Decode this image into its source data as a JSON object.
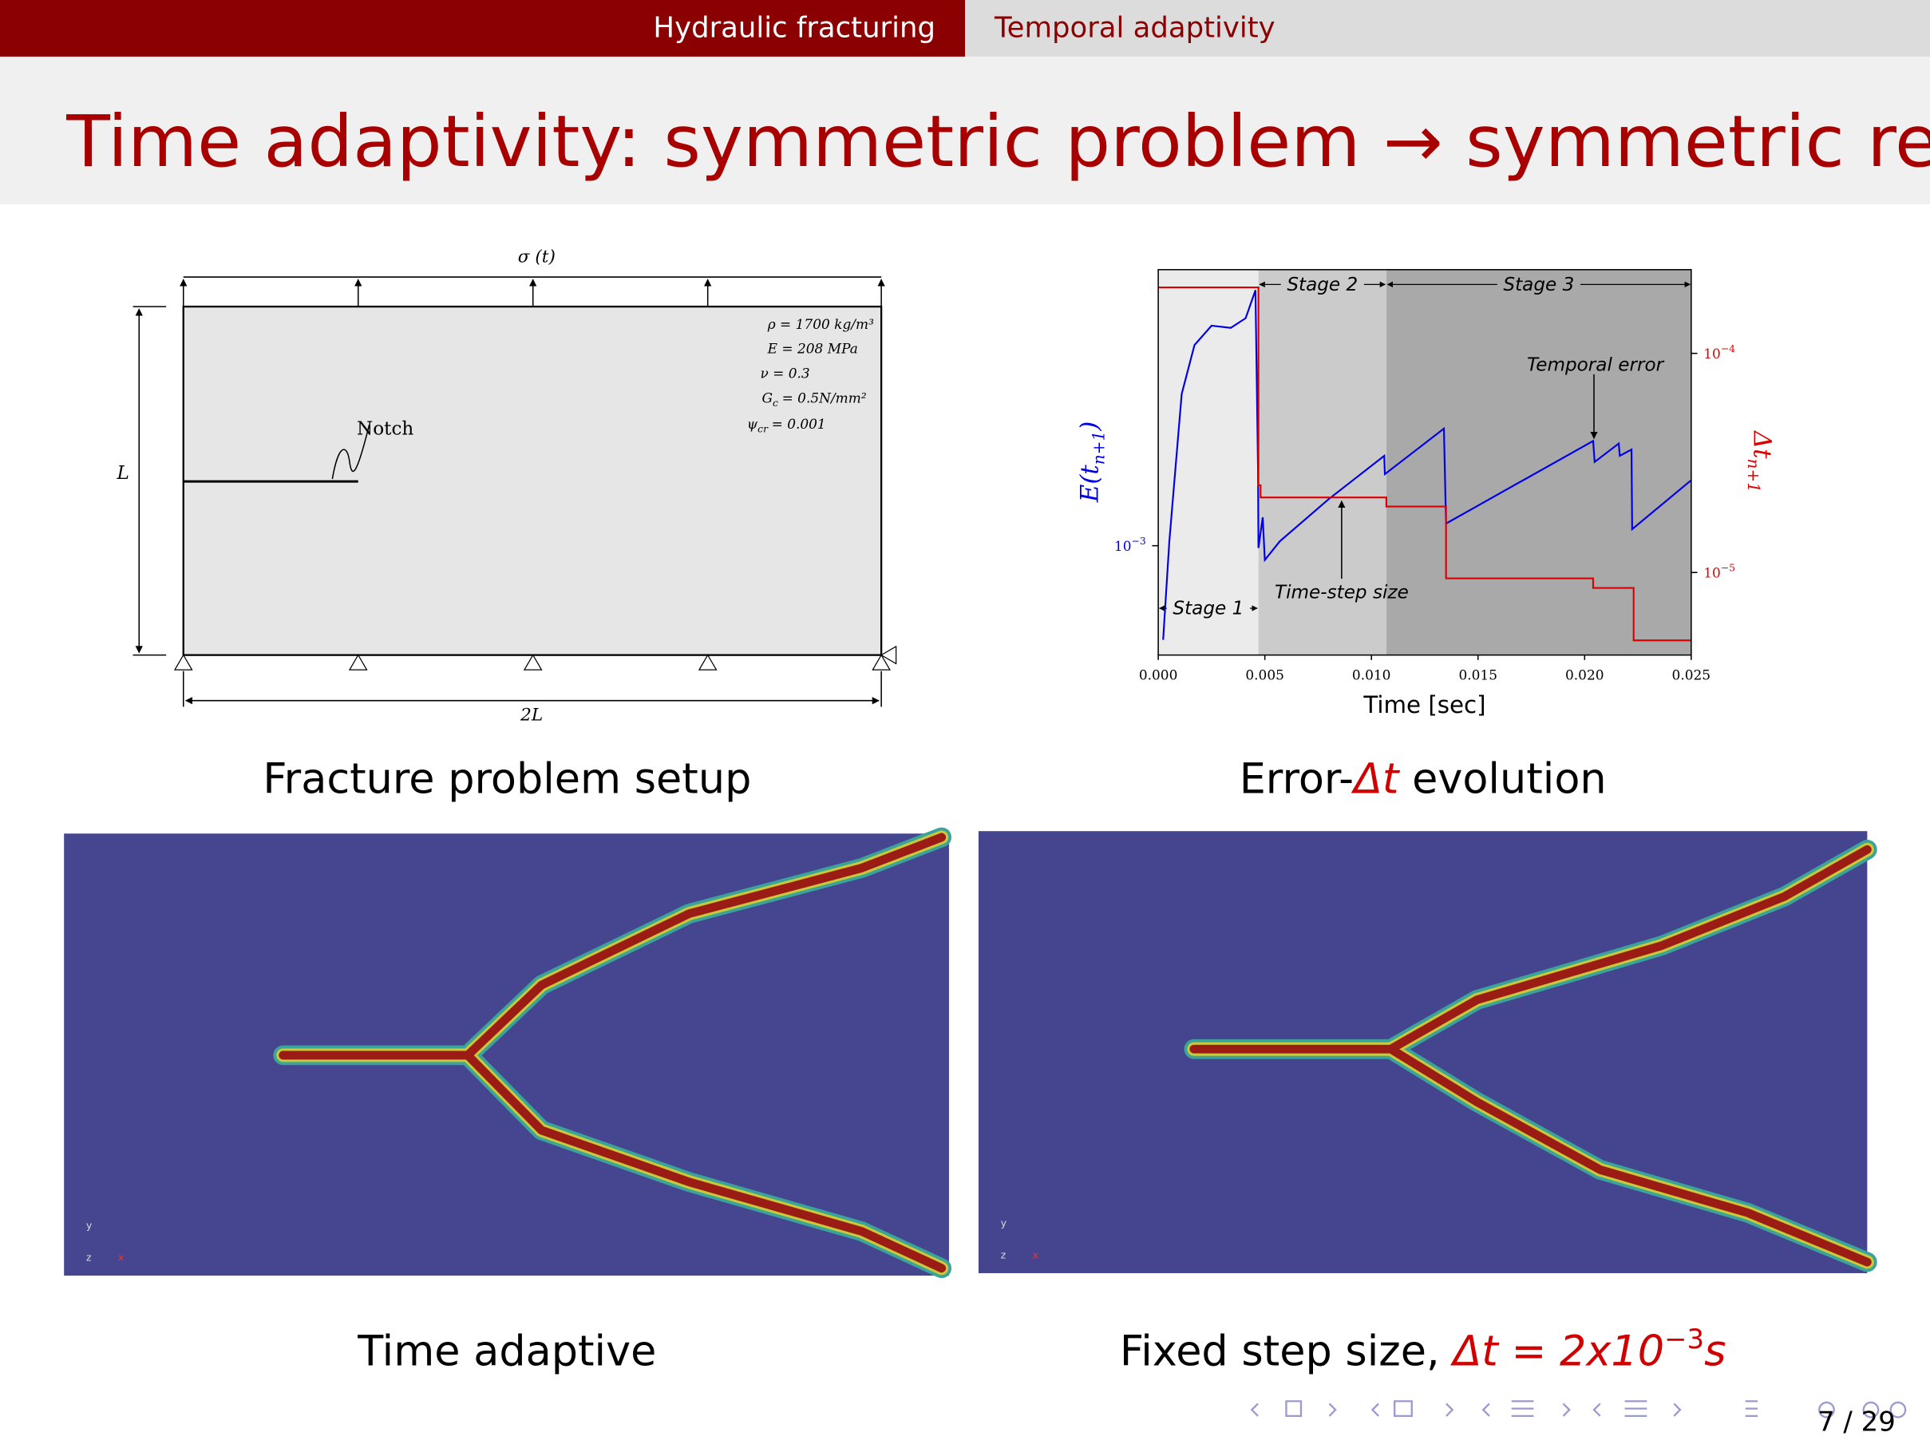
{
  "nav": {
    "sections": [
      "Hydraulic fracturing",
      "Temporal adaptivity"
    ]
  },
  "title": "Time adaptivity: symmetric problem → symmetric results",
  "setup": {
    "load": "σ (t)",
    "parameters": [
      {
        "text": "ρ = 1700 kg/m³"
      },
      {
        "text": "E = 208 MPa"
      },
      {
        "text": "ν = 0.3"
      },
      {
        "symbol": "G",
        "sub": "c",
        "text": "= 0.5N/mm²"
      },
      {
        "symbol": "ψ",
        "sub": "cr",
        "text": "= 0.001"
      }
    ],
    "notch": "Notch",
    "height": "L",
    "width": "2L"
  },
  "captions": {
    "setup": "Fracture problem setup",
    "chart": [
      "Error-",
      "Δt",
      " evolution"
    ],
    "adaptive": "Time adaptive",
    "fixed": [
      "Fixed step size, ",
      "Δt = 2x10",
      "−3",
      "s"
    ]
  },
  "triad": [
    "y",
    "z",
    "x"
  ],
  "chart_data": {
    "type": "line",
    "log": true,
    "xlabel": "Time [sec]",
    "ylabel": [
      "E(t",
      "n+1",
      ")"
    ],
    "y2label": [
      "Δt",
      "n+1"
    ],
    "xlim": [
      0,
      0.025
    ],
    "xticks": [
      {
        "value": 0,
        "label": "0.000"
      },
      {
        "value": 0.005,
        "label": "0.005"
      },
      {
        "value": 0.01,
        "label": "0.010"
      },
      {
        "value": 0.015,
        "label": "0.015"
      },
      {
        "value": 0.02,
        "label": "0.020"
      },
      {
        "value": 0.025,
        "label": "0.025"
      }
    ],
    "ylim": [
      0.000375,
      0.0119
    ],
    "yticks": [
      {
        "value": 0.001,
        "label": "10",
        "exponent": "−3"
      }
    ],
    "y2lim": [
      4.2e-06,
      0.000241
    ],
    "y2ticks": [
      {
        "value": 0.0001,
        "label": "10",
        "exponent": "−4"
      },
      {
        "value": 1e-05,
        "label": "10",
        "exponent": "−5"
      }
    ],
    "stages": [
      {
        "label": "Stage 1",
        "start": 0,
        "end": 0.0047,
        "color": "#ebebeb"
      },
      {
        "label": "Stage 2",
        "start": 0.0047,
        "end": 0.0107,
        "color": "#cbcbcb"
      },
      {
        "label": "Stage 3",
        "start": 0.0107,
        "end": 0.025,
        "color": "#a9a9a9"
      }
    ],
    "annotations": [
      "Temporal error",
      "Time-step size"
    ],
    "series": [
      {
        "color": "#0000e6",
        "x": [
          0.00023,
          0.00052,
          0.0011,
          0.0017,
          0.0025,
          0.0034,
          0.0041,
          0.00456,
          0.00468,
          0.0047,
          0.0049,
          0.005,
          0.0057,
          0.008,
          0.0106,
          0.01063,
          0.0134,
          0.0135,
          0.0204,
          0.02047,
          0.0216,
          0.02165,
          0.0222,
          0.02223,
          0.025
        ],
        "values": [
          0.00043,
          0.00104,
          0.0039,
          0.00605,
          0.0072,
          0.00706,
          0.0077,
          0.0099,
          0.002,
          0.00098,
          0.00129,
          0.00088,
          0.00104,
          0.00152,
          0.00224,
          0.0019,
          0.00286,
          0.00122,
          0.00256,
          0.00212,
          0.0025,
          0.00224,
          0.00237,
          0.00116,
          0.0018
        ]
      },
      {
        "color": "#dd0000",
        "axis": "y2",
        "x": [
          0,
          0.0047,
          0.0047,
          0.0048,
          0.0048,
          0.0107,
          0.0107,
          0.0135,
          0.0135,
          0.0204,
          0.0204,
          0.0223,
          0.0223,
          0.025
        ],
        "values": [
          0.0002,
          0.0002,
          2.5e-05,
          2.5e-05,
          2.2e-05,
          2.2e-05,
          2e-05,
          2e-05,
          9.4e-06,
          9.4e-06,
          8.5e-06,
          8.5e-06,
          4.9e-06,
          4.9e-06
        ]
      }
    ]
  },
  "page": "7 / 29"
}
